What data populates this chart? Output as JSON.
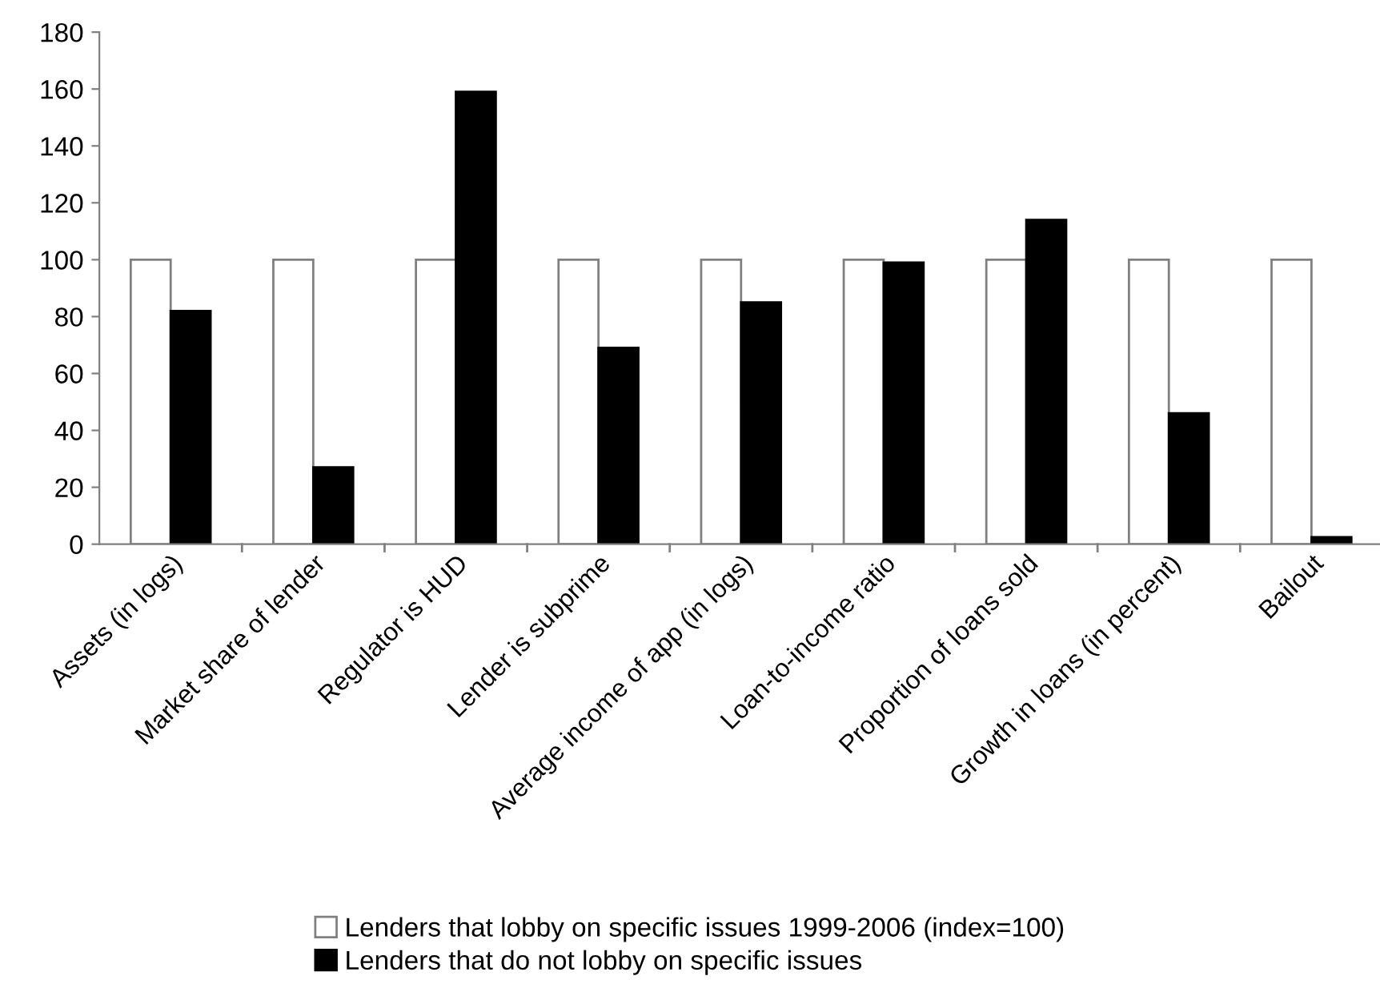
{
  "chart_data": {
    "type": "bar",
    "categories": [
      "Assets (in logs)",
      "Market share of lender",
      "Regulator is HUD",
      "Lender is subprime",
      "Average income of app (in logs)",
      "Loan-to-income ratio",
      "Proportion of loans sold",
      "Growth in loans (in percent)",
      "Bailout"
    ],
    "series": [
      {
        "name": "Lenders that lobby on specific issues 1999-2006 (index=100)",
        "color": "#ffffff",
        "values": [
          100,
          100,
          100,
          100,
          100,
          100,
          100,
          100,
          100
        ]
      },
      {
        "name": "Lenders that do not lobby on specific issues",
        "color": "#000000",
        "values": [
          82,
          27,
          159,
          69,
          85,
          99,
          114,
          46,
          2.5
        ]
      }
    ],
    "ylim": [
      0,
      180
    ],
    "yticks": [
      0,
      20,
      40,
      60,
      80,
      100,
      120,
      140,
      160,
      180
    ],
    "grid": false,
    "legend": "bottom"
  }
}
